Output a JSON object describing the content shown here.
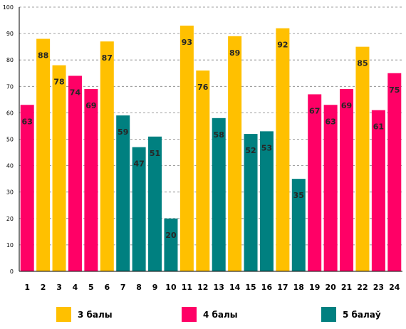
{
  "chart_data": {
    "type": "bar",
    "categories": [
      "1",
      "2",
      "3",
      "4",
      "5",
      "6",
      "7",
      "8",
      "9",
      "10",
      "11",
      "12",
      "13",
      "14",
      "15",
      "16",
      "17",
      "18",
      "19",
      "20",
      "21",
      "22",
      "23",
      "24"
    ],
    "values": [
      63,
      88,
      78,
      74,
      69,
      87,
      59,
      47,
      51,
      20,
      93,
      76,
      58,
      89,
      52,
      53,
      92,
      35,
      67,
      63,
      69,
      85,
      61,
      75
    ],
    "groups": [
      "4",
      "3",
      "3",
      "4",
      "4",
      "3",
      "5",
      "5",
      "5",
      "5",
      "3",
      "3",
      "5",
      "3",
      "5",
      "5",
      "3",
      "5",
      "4",
      "4",
      "4",
      "3",
      "4",
      "4"
    ],
    "ylim": [
      0,
      100
    ],
    "yticks": [
      0,
      10,
      20,
      30,
      40,
      50,
      60,
      70,
      80,
      90,
      100
    ],
    "grid": "horizontal-dashed",
    "data_labels": true,
    "legend_position": "bottom",
    "legend": [
      {
        "key": "3",
        "label": "3 балы",
        "color": "#FFC000"
      },
      {
        "key": "4",
        "label": "4 балы",
        "color": "#FF0066"
      },
      {
        "key": "5",
        "label": "5 балаў",
        "color": "#008080"
      }
    ]
  }
}
